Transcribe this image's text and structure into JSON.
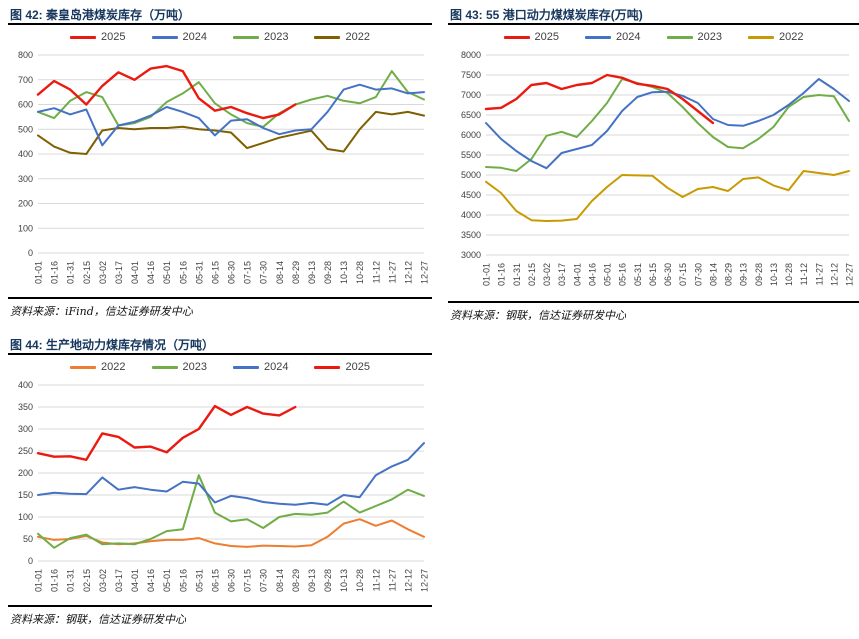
{
  "page": {
    "background": "#ffffff"
  },
  "figures": [
    {
      "title": "图 42: 秦皇岛港煤炭库存（万吨）",
      "source": "资料来源：iFind，信达证券研发中心",
      "chart_index": 0
    },
    {
      "title": "图 43: 55 港口动力煤煤炭库存(万吨)",
      "source": "资料来源：钢联，信达证券研发中心",
      "chart_index": 1
    },
    {
      "title": "图 44: 生产地动力煤库存情况（万吨）",
      "source": "资料来源：钢联，信达证券研发中心",
      "chart_index": 2
    }
  ],
  "colors": {
    "title_navy": "#17375e",
    "grid_gray": "#d9d9d9",
    "tick_gray": "#404040",
    "red_2025": "#eb1a10",
    "blue_2024": "#4472c4",
    "green_2023": "#70ad47",
    "olive_2022": "#7f6000",
    "gold_2022": "#c99a00",
    "orange_2022": "#ed7d31"
  },
  "chart_data": [
    {
      "type": "line",
      "title": "秦皇岛港煤炭库存（万吨）",
      "xlabel": "",
      "ylabel": "",
      "ylim": [
        0,
        800
      ],
      "ytick": 100,
      "grid": true,
      "legend_position": "top",
      "categories": [
        "01-01",
        "01-16",
        "01-31",
        "02-15",
        "03-02",
        "03-17",
        "04-01",
        "04-16",
        "05-01",
        "05-16",
        "05-31",
        "06-15",
        "06-30",
        "07-15",
        "07-30",
        "08-14",
        "08-29",
        "09-13",
        "09-28",
        "10-13",
        "10-28",
        "11-12",
        "11-27",
        "12-12",
        "12-27"
      ],
      "series": [
        {
          "name": "2025",
          "color": "#eb1a10",
          "width": 2.4,
          "values": [
            640,
            695,
            660,
            600,
            675,
            730,
            700,
            745,
            755,
            735,
            625,
            575,
            590,
            565,
            545,
            560,
            600,
            null,
            null,
            null,
            null,
            null,
            null,
            null,
            null
          ]
        },
        {
          "name": "2024",
          "color": "#4472c4",
          "width": 2,
          "values": [
            570,
            585,
            560,
            580,
            435,
            515,
            530,
            555,
            590,
            570,
            545,
            475,
            535,
            540,
            505,
            480,
            495,
            500,
            570,
            660,
            680,
            660,
            665,
            645,
            650
          ]
        },
        {
          "name": "2023",
          "color": "#70ad47",
          "width": 2,
          "values": [
            570,
            545,
            615,
            650,
            630,
            515,
            525,
            550,
            610,
            645,
            690,
            605,
            560,
            525,
            510,
            565,
            600,
            620,
            635,
            615,
            605,
            630,
            735,
            650,
            620
          ]
        },
        {
          "name": "2022",
          "color": "#7f6000",
          "width": 2,
          "values": [
            475,
            430,
            405,
            400,
            495,
            505,
            500,
            505,
            505,
            510,
            500,
            495,
            487,
            424,
            445,
            466,
            480,
            494,
            420,
            410,
            500,
            570,
            560,
            570,
            555
          ]
        }
      ]
    },
    {
      "type": "line",
      "title": "55 港口动力煤煤炭库存(万吨)",
      "xlabel": "",
      "ylabel": "",
      "ylim": [
        3000,
        8000
      ],
      "ytick": 500,
      "grid": true,
      "legend_position": "top",
      "categories": [
        "01-01",
        "01-16",
        "01-31",
        "02-15",
        "03-02",
        "03-17",
        "04-01",
        "04-16",
        "05-01",
        "05-16",
        "05-31",
        "06-15",
        "06-30",
        "07-15",
        "07-30",
        "08-14",
        "08-29",
        "09-13",
        "09-28",
        "10-13",
        "10-28",
        "11-12",
        "11-27",
        "12-12",
        "12-27"
      ],
      "series": [
        {
          "name": "2025",
          "color": "#eb1a10",
          "width": 2.4,
          "values": [
            6650,
            6680,
            6900,
            7250,
            7300,
            7150,
            7250,
            7300,
            7500,
            7430,
            7280,
            7230,
            7150,
            6900,
            6600,
            6300,
            null,
            null,
            null,
            null,
            null,
            null,
            null,
            null,
            null
          ]
        },
        {
          "name": "2024",
          "color": "#4472c4",
          "width": 2,
          "values": [
            6300,
            5900,
            5600,
            5350,
            5170,
            5550,
            5650,
            5750,
            6100,
            6600,
            6950,
            7070,
            7080,
            6980,
            6800,
            6400,
            6250,
            6230,
            6350,
            6500,
            6750,
            7050,
            7400,
            7150,
            6850
          ]
        },
        {
          "name": "2023",
          "color": "#70ad47",
          "width": 2,
          "values": [
            5200,
            5180,
            5100,
            5400,
            5980,
            6080,
            5950,
            6350,
            6800,
            7400,
            7300,
            7200,
            7050,
            6700,
            6300,
            5950,
            5700,
            5670,
            5900,
            6200,
            6700,
            6950,
            7000,
            6970,
            6350
          ]
        },
        {
          "name": "2022",
          "color": "#c99a00",
          "width": 2,
          "values": [
            4830,
            4550,
            4100,
            3870,
            3850,
            3860,
            3900,
            4350,
            4700,
            5000,
            4990,
            4980,
            4680,
            4450,
            4650,
            4700,
            4600,
            4900,
            4940,
            4740,
            4620,
            5100,
            5050,
            5000,
            5100
          ]
        }
      ]
    },
    {
      "type": "line",
      "title": "生产地动力煤库存情况（万吨）",
      "xlabel": "",
      "ylabel": "",
      "ylim": [
        0,
        400
      ],
      "ytick": 50,
      "grid": true,
      "legend_position": "top",
      "categories": [
        "01-01",
        "01-16",
        "01-31",
        "02-15",
        "03-02",
        "03-17",
        "04-01",
        "04-16",
        "05-01",
        "05-16",
        "05-31",
        "06-15",
        "06-30",
        "07-15",
        "07-30",
        "08-14",
        "08-29",
        "09-13",
        "09-28",
        "10-13",
        "10-28",
        "11-12",
        "11-27",
        "12-12",
        "12-27"
      ],
      "series": [
        {
          "name": "2022",
          "color": "#ed7d31",
          "width": 2,
          "values": [
            55,
            48,
            50,
            57,
            42,
            38,
            40,
            45,
            48,
            48,
            52,
            40,
            34,
            32,
            35,
            34,
            33,
            36,
            55,
            85,
            95,
            80,
            92,
            72,
            55
          ]
        },
        {
          "name": "2023",
          "color": "#70ad47",
          "width": 2,
          "values": [
            62,
            30,
            52,
            60,
            38,
            40,
            38,
            50,
            68,
            72,
            195,
            110,
            90,
            95,
            75,
            100,
            107,
            105,
            110,
            135,
            110,
            125,
            140,
            162,
            148
          ]
        },
        {
          "name": "2024",
          "color": "#4472c4",
          "width": 2,
          "values": [
            150,
            155,
            153,
            152,
            190,
            162,
            168,
            162,
            158,
            180,
            176,
            133,
            148,
            143,
            134,
            130,
            128,
            132,
            128,
            150,
            145,
            195,
            215,
            230,
            268
          ]
        },
        {
          "name": "2025",
          "color": "#eb1a10",
          "width": 2.4,
          "values": [
            245,
            237,
            238,
            230,
            290,
            282,
            258,
            260,
            247,
            280,
            300,
            352,
            332,
            350,
            335,
            331,
            350,
            null,
            null,
            null,
            null,
            null,
            null,
            null,
            null
          ]
        }
      ]
    }
  ]
}
